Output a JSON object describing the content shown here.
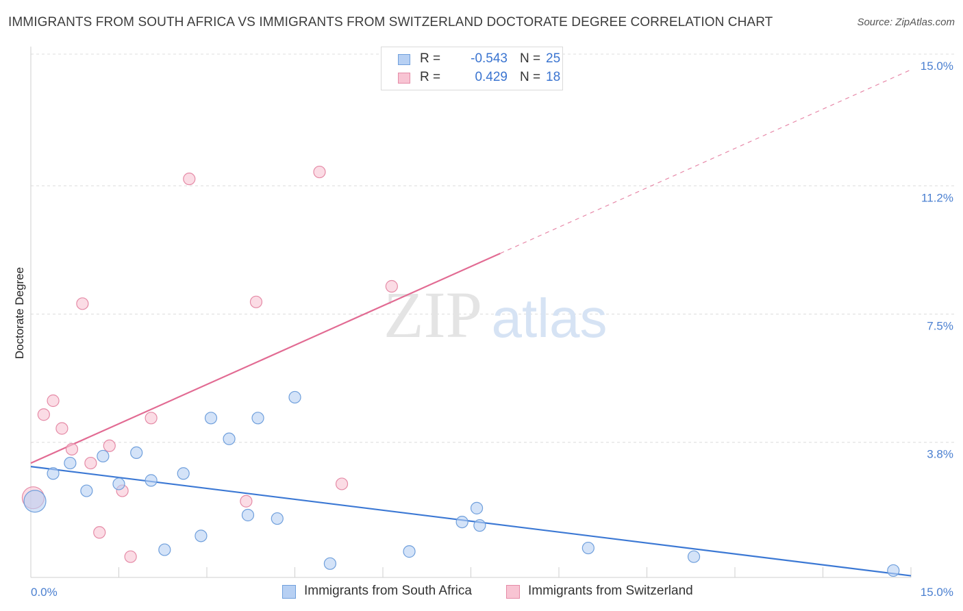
{
  "title": "IMMIGRANTS FROM SOUTH AFRICA VS IMMIGRANTS FROM SWITZERLAND DOCTORATE DEGREE CORRELATION CHART",
  "source": "Source: ZipAtlas.com",
  "watermark": {
    "zip": "ZIP",
    "atlas": "atlas"
  },
  "colors": {
    "blue_fill": "#b7d0f3",
    "blue_stroke": "#6f9fdc",
    "blue_line": "#3b78d4",
    "pink_fill": "#f8c4d3",
    "pink_stroke": "#e58aa6",
    "pink_line": "#e26b93",
    "tick_text": "#4a7fd0",
    "grid": "#dcdcdc"
  },
  "legend": {
    "rows": [
      {
        "r_label": "R =",
        "r_value": "-0.543",
        "n_label": "N =",
        "n_value": "25",
        "color": "blue"
      },
      {
        "r_label": "R =",
        "r_value": "0.429",
        "n_label": "N =",
        "n_value": "18",
        "color": "pink"
      }
    ]
  },
  "bottom_legend": [
    {
      "label": "Immigrants from South Africa",
      "color": "blue"
    },
    {
      "label": "Immigrants from Switzerland",
      "color": "pink"
    }
  ],
  "chart_data": {
    "type": "scatter",
    "title": "IMMIGRANTS FROM SOUTH AFRICA VS IMMIGRANTS FROM SWITZERLAND DOCTORATE DEGREE CORRELATION CHART",
    "xlabel": "",
    "ylabel": "Doctorate Degree",
    "xlim": [
      0,
      15
    ],
    "ylim": [
      0,
      15
    ],
    "x_tick_labels": [
      "0.0%",
      "15.0%"
    ],
    "y_ticks": [
      {
        "value": 3.8,
        "label": "3.8%"
      },
      {
        "value": 7.5,
        "label": "7.5%"
      },
      {
        "value": 11.2,
        "label": "11.2%"
      },
      {
        "value": 15.0,
        "label": "15.0%"
      }
    ],
    "grid": "horizontal dashed",
    "legend_position": "top-center",
    "series": [
      {
        "name": "Immigrants from South Africa",
        "color": "blue",
        "points": [
          {
            "x": 0.07,
            "y": 2.1,
            "size": "large"
          },
          {
            "x": 0.38,
            "y": 2.9
          },
          {
            "x": 0.67,
            "y": 3.2
          },
          {
            "x": 0.95,
            "y": 2.4
          },
          {
            "x": 1.23,
            "y": 3.4
          },
          {
            "x": 1.5,
            "y": 2.6
          },
          {
            "x": 1.8,
            "y": 3.5
          },
          {
            "x": 2.05,
            "y": 2.7
          },
          {
            "x": 2.28,
            "y": 0.7
          },
          {
            "x": 2.6,
            "y": 2.9
          },
          {
            "x": 2.9,
            "y": 1.1
          },
          {
            "x": 3.07,
            "y": 4.5
          },
          {
            "x": 3.38,
            "y": 3.9
          },
          {
            "x": 3.7,
            "y": 1.7
          },
          {
            "x": 3.87,
            "y": 4.5
          },
          {
            "x": 4.2,
            "y": 1.6
          },
          {
            "x": 4.5,
            "y": 5.1
          },
          {
            "x": 5.1,
            "y": 0.3
          },
          {
            "x": 6.45,
            "y": 0.65
          },
          {
            "x": 7.35,
            "y": 1.5
          },
          {
            "x": 7.6,
            "y": 1.9
          },
          {
            "x": 7.65,
            "y": 1.4
          },
          {
            "x": 9.5,
            "y": 0.75
          },
          {
            "x": 11.3,
            "y": 0.5
          },
          {
            "x": 14.7,
            "y": 0.1
          }
        ],
        "trend": {
          "x1": 0,
          "y1": 3.1,
          "x2": 15,
          "y2": -0.05
        }
      },
      {
        "name": "Immigrants from Switzerland",
        "color": "pink",
        "points": [
          {
            "x": 0.04,
            "y": 2.2,
            "size": "large"
          },
          {
            "x": 0.22,
            "y": 4.6
          },
          {
            "x": 0.38,
            "y": 5.0
          },
          {
            "x": 0.53,
            "y": 4.2
          },
          {
            "x": 0.7,
            "y": 3.6
          },
          {
            "x": 0.88,
            "y": 7.8
          },
          {
            "x": 1.02,
            "y": 3.2
          },
          {
            "x": 1.17,
            "y": 1.2
          },
          {
            "x": 1.34,
            "y": 3.7
          },
          {
            "x": 1.56,
            "y": 2.4
          },
          {
            "x": 1.7,
            "y": 0.5
          },
          {
            "x": 2.05,
            "y": 4.5
          },
          {
            "x": 2.7,
            "y": 11.4
          },
          {
            "x": 3.67,
            "y": 2.1
          },
          {
            "x": 3.84,
            "y": 7.85
          },
          {
            "x": 4.92,
            "y": 11.6
          },
          {
            "x": 5.3,
            "y": 2.6
          },
          {
            "x": 6.15,
            "y": 8.3
          }
        ],
        "trend": {
          "x1": 0,
          "y1": 3.2,
          "x2": 8.0,
          "y2": 9.25,
          "dashed_to_x": 15,
          "dashed_to_y": 14.55
        }
      }
    ]
  }
}
